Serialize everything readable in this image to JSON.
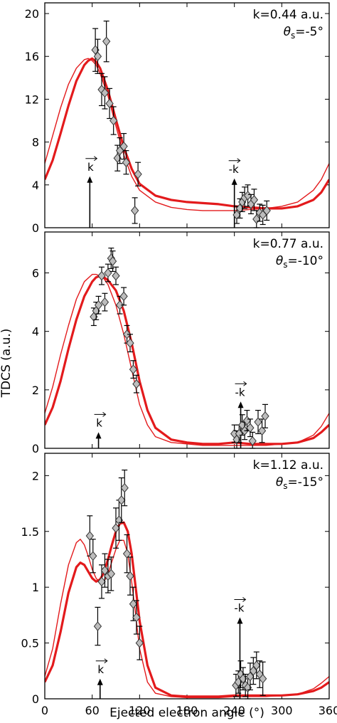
{
  "figure": {
    "ylabel": "TDCS (a.u.)",
    "xlabel": "Ejected electron angle (°)"
  },
  "chart_data": [
    {
      "type": "line",
      "annotation_k": "k=0.44 a.u.",
      "annotation_theta_sym": "θ",
      "annotation_theta_sub": "s",
      "annotation_theta_val": "=-5°",
      "ylim": [
        0,
        21
      ],
      "yticks": [
        0,
        4,
        8,
        12,
        16,
        20
      ],
      "xlim": [
        0,
        360
      ],
      "series": [
        {
          "style": "thick",
          "color": "#e31a1c",
          "x": [
            0,
            10,
            20,
            30,
            40,
            50,
            55,
            60,
            65,
            70,
            80,
            90,
            100,
            110,
            120,
            140,
            160,
            180,
            200,
            220,
            240,
            260,
            280,
            300,
            320,
            340,
            350,
            360
          ],
          "y": [
            4.5,
            6.3,
            8.8,
            11.4,
            13.7,
            15.2,
            15.6,
            15.8,
            15.5,
            14.9,
            12.8,
            10.1,
            7.5,
            5.5,
            4.1,
            3.0,
            2.6,
            2.4,
            2.3,
            2.2,
            2.0,
            1.9,
            1.8,
            1.8,
            2.0,
            2.6,
            3.3,
            4.5
          ]
        },
        {
          "style": "thin",
          "color": "#e31a1c",
          "x": [
            0,
            10,
            20,
            30,
            40,
            50,
            55,
            60,
            65,
            70,
            80,
            90,
            100,
            110,
            120,
            140,
            160,
            180,
            200,
            220,
            240,
            260,
            280,
            300,
            320,
            340,
            350,
            360
          ],
          "y": [
            6.0,
            8.6,
            11.2,
            13.4,
            14.9,
            15.7,
            15.8,
            15.6,
            15.2,
            14.4,
            12.3,
            9.5,
            6.8,
            4.8,
            3.5,
            2.4,
            1.9,
            1.7,
            1.6,
            1.6,
            1.6,
            1.7,
            1.8,
            2.0,
            2.4,
            3.5,
            4.5,
            6.0
          ]
        }
      ],
      "points": [
        {
          "x": 64,
          "y": 16.6,
          "err": 2.0
        },
        {
          "x": 67,
          "y": 16.0,
          "err": 1.6
        },
        {
          "x": 72,
          "y": 12.9,
          "err": 1.5
        },
        {
          "x": 76,
          "y": 12.6,
          "err": 1.5
        },
        {
          "x": 78,
          "y": 17.4,
          "err": 1.9
        },
        {
          "x": 82,
          "y": 11.6,
          "err": 1.4
        },
        {
          "x": 87,
          "y": 10.0,
          "err": 1.3
        },
        {
          "x": 92,
          "y": 6.5,
          "err": 1.2
        },
        {
          "x": 95,
          "y": 7.2,
          "err": 1.2
        },
        {
          "x": 100,
          "y": 7.6,
          "err": 1.2
        },
        {
          "x": 103,
          "y": 6.1,
          "err": 1.1
        },
        {
          "x": 114,
          "y": 1.6,
          "err": 1.2
        },
        {
          "x": 118,
          "y": 5.0,
          "err": 1.1
        },
        {
          "x": 243,
          "y": 1.2,
          "err": 0.8
        },
        {
          "x": 247,
          "y": 1.8,
          "err": 0.9
        },
        {
          "x": 250,
          "y": 2.4,
          "err": 0.9
        },
        {
          "x": 253,
          "y": 2.8,
          "err": 1.0
        },
        {
          "x": 257,
          "y": 3.0,
          "err": 1.0
        },
        {
          "x": 261,
          "y": 2.2,
          "err": 0.9
        },
        {
          "x": 265,
          "y": 2.6,
          "err": 1.0
        },
        {
          "x": 268,
          "y": 0.8,
          "err": 0.8
        },
        {
          "x": 272,
          "y": 1.4,
          "err": 0.8
        },
        {
          "x": 276,
          "y": 1.2,
          "err": 0.9
        },
        {
          "x": 281,
          "y": 1.6,
          "err": 0.9
        }
      ],
      "arrows": [
        {
          "x": 57,
          "y0": 0,
          "y1": 4.8,
          "label": "k"
        },
        {
          "x": 240,
          "y0": 0,
          "y1": 4.6,
          "label": "-k"
        }
      ]
    },
    {
      "type": "line",
      "annotation_k": "k=0.77 a.u.",
      "annotation_theta_sym": "θ",
      "annotation_theta_sub": "s",
      "annotation_theta_val": "=-10°",
      "ylim": [
        0,
        7.4
      ],
      "yticks": [
        0,
        2,
        4,
        6
      ],
      "xlim": [
        0,
        360
      ],
      "series": [
        {
          "style": "thick",
          "color": "#e31a1c",
          "x": [
            0,
            10,
            20,
            30,
            40,
            50,
            60,
            65,
            70,
            75,
            80,
            90,
            100,
            110,
            120,
            130,
            140,
            160,
            180,
            200,
            220,
            240,
            260,
            280,
            300,
            320,
            340,
            350,
            360
          ],
          "y": [
            0.8,
            1.4,
            2.3,
            3.4,
            4.4,
            5.2,
            5.7,
            5.85,
            5.9,
            5.85,
            5.75,
            5.4,
            4.7,
            3.6,
            2.3,
            1.3,
            0.7,
            0.3,
            0.2,
            0.15,
            0.15,
            0.2,
            0.15,
            0.15,
            0.15,
            0.2,
            0.35,
            0.55,
            0.8
          ]
        },
        {
          "style": "thin",
          "color": "#e31a1c",
          "x": [
            0,
            10,
            20,
            30,
            40,
            50,
            60,
            65,
            70,
            75,
            80,
            90,
            100,
            110,
            120,
            130,
            140,
            160,
            180,
            200,
            220,
            240,
            260,
            280,
            300,
            320,
            340,
            350,
            360
          ],
          "y": [
            1.2,
            2.1,
            3.2,
            4.2,
            5.1,
            5.7,
            5.95,
            5.95,
            5.9,
            5.8,
            5.6,
            4.9,
            3.9,
            2.7,
            1.5,
            0.8,
            0.4,
            0.2,
            0.15,
            0.1,
            0.1,
            0.1,
            0.1,
            0.1,
            0.15,
            0.2,
            0.45,
            0.75,
            1.2
          ]
        }
      ],
      "points": [
        {
          "x": 62,
          "y": 4.5,
          "err": 0.3
        },
        {
          "x": 65,
          "y": 4.7,
          "err": 0.3
        },
        {
          "x": 68,
          "y": 4.9,
          "err": 0.3
        },
        {
          "x": 72,
          "y": 5.9,
          "err": 0.3
        },
        {
          "x": 76,
          "y": 5.0,
          "err": 0.3
        },
        {
          "x": 80,
          "y": 6.0,
          "err": 0.3
        },
        {
          "x": 84,
          "y": 6.5,
          "err": 0.35
        },
        {
          "x": 86,
          "y": 6.4,
          "err": 0.35
        },
        {
          "x": 90,
          "y": 5.9,
          "err": 0.3
        },
        {
          "x": 95,
          "y": 4.9,
          "err": 0.3
        },
        {
          "x": 100,
          "y": 5.2,
          "err": 0.3
        },
        {
          "x": 104,
          "y": 3.9,
          "err": 0.3
        },
        {
          "x": 108,
          "y": 3.6,
          "err": 0.3
        },
        {
          "x": 112,
          "y": 2.7,
          "err": 0.3
        },
        {
          "x": 116,
          "y": 2.2,
          "err": 0.3
        },
        {
          "x": 240,
          "y": 0.5,
          "err": 0.3
        },
        {
          "x": 243,
          "y": 0.3,
          "err": 0.3
        },
        {
          "x": 246,
          "y": 0.5,
          "err": 0.3
        },
        {
          "x": 250,
          "y": 0.8,
          "err": 0.35
        },
        {
          "x": 253,
          "y": 0.6,
          "err": 0.3
        },
        {
          "x": 256,
          "y": 0.95,
          "err": 0.35
        },
        {
          "x": 260,
          "y": 0.7,
          "err": 0.3
        },
        {
          "x": 263,
          "y": 0.25,
          "err": 0.3
        },
        {
          "x": 270,
          "y": 0.9,
          "err": 0.4
        },
        {
          "x": 275,
          "y": 0.6,
          "err": 0.4
        },
        {
          "x": 279,
          "y": 1.1,
          "err": 0.4
        }
      ],
      "arrows": [
        {
          "x": 68,
          "y0": 0,
          "y1": 0.55,
          "label": "k"
        },
        {
          "x": 248,
          "y0": 0,
          "y1": 1.6,
          "label": "-k"
        }
      ]
    },
    {
      "type": "line",
      "annotation_k": "k=1.12 a.u.",
      "annotation_theta_sym": "θ",
      "annotation_theta_sub": "s",
      "annotation_theta_val": "=-15°",
      "ylim": [
        0,
        2.2
      ],
      "yticks": [
        0,
        0.5,
        1,
        1.5,
        2
      ],
      "xlim": [
        0,
        360
      ],
      "series": [
        {
          "style": "thick",
          "color": "#e31a1c",
          "x": [
            0,
            10,
            20,
            30,
            40,
            45,
            50,
            55,
            60,
            65,
            70,
            75,
            80,
            85,
            90,
            95,
            100,
            105,
            110,
            115,
            120,
            130,
            140,
            160,
            180,
            200,
            220,
            240,
            260,
            280,
            300,
            320,
            340,
            350,
            360
          ],
          "y": [
            0.15,
            0.3,
            0.6,
            0.95,
            1.18,
            1.22,
            1.2,
            1.14,
            1.08,
            1.05,
            1.07,
            1.13,
            1.25,
            1.38,
            1.5,
            1.57,
            1.58,
            1.5,
            1.3,
            1.0,
            0.7,
            0.3,
            0.1,
            0.03,
            0.02,
            0.02,
            0.02,
            0.03,
            0.03,
            0.03,
            0.03,
            0.04,
            0.07,
            0.1,
            0.15
          ]
        },
        {
          "style": "thin",
          "color": "#e31a1c",
          "x": [
            0,
            10,
            20,
            30,
            40,
            45,
            50,
            55,
            60,
            65,
            70,
            75,
            80,
            85,
            90,
            95,
            100,
            105,
            110,
            115,
            120,
            130,
            140,
            160,
            180,
            200,
            220,
            240,
            260,
            280,
            300,
            320,
            340,
            350,
            360
          ],
          "y": [
            0.2,
            0.45,
            0.85,
            1.2,
            1.4,
            1.43,
            1.38,
            1.28,
            1.16,
            1.08,
            1.04,
            1.05,
            1.12,
            1.23,
            1.34,
            1.42,
            1.42,
            1.3,
            1.05,
            0.75,
            0.45,
            0.15,
            0.05,
            0.02,
            0.01,
            0.01,
            0.01,
            0.02,
            0.02,
            0.02,
            0.03,
            0.04,
            0.09,
            0.14,
            0.2
          ]
        }
      ],
      "points": [
        {
          "x": 57,
          "y": 1.46,
          "err": 0.18
        },
        {
          "x": 61,
          "y": 1.28,
          "err": 0.15
        },
        {
          "x": 67,
          "y": 0.65,
          "err": 0.17
        },
        {
          "x": 72,
          "y": 1.05,
          "err": 0.15
        },
        {
          "x": 76,
          "y": 1.15,
          "err": 0.15
        },
        {
          "x": 80,
          "y": 1.1,
          "err": 0.15
        },
        {
          "x": 84,
          "y": 1.12,
          "err": 0.15
        },
        {
          "x": 90,
          "y": 1.53,
          "err": 0.18
        },
        {
          "x": 94,
          "y": 1.6,
          "err": 0.18
        },
        {
          "x": 97,
          "y": 1.78,
          "err": 0.2
        },
        {
          "x": 101,
          "y": 1.89,
          "err": 0.16
        },
        {
          "x": 104,
          "y": 1.3,
          "err": 0.17
        },
        {
          "x": 108,
          "y": 1.1,
          "err": 0.17
        },
        {
          "x": 112,
          "y": 0.85,
          "err": 0.15
        },
        {
          "x": 116,
          "y": 0.73,
          "err": 0.15
        },
        {
          "x": 120,
          "y": 0.5,
          "err": 0.15
        },
        {
          "x": 242,
          "y": 0.12,
          "err": 0.1
        },
        {
          "x": 245,
          "y": 0.15,
          "err": 0.1
        },
        {
          "x": 248,
          "y": 0.22,
          "err": 0.12
        },
        {
          "x": 251,
          "y": 0.18,
          "err": 0.1
        },
        {
          "x": 254,
          "y": 0.12,
          "err": 0.1
        },
        {
          "x": 257,
          "y": 0.1,
          "err": 0.1
        },
        {
          "x": 260,
          "y": 0.2,
          "err": 0.12
        },
        {
          "x": 264,
          "y": 0.25,
          "err": 0.12
        },
        {
          "x": 268,
          "y": 0.3,
          "err": 0.12
        },
        {
          "x": 272,
          "y": 0.22,
          "err": 0.12
        },
        {
          "x": 276,
          "y": 0.18,
          "err": 0.15
        }
      ],
      "arrows": [
        {
          "x": 70,
          "y0": 0,
          "y1": 0.18,
          "label": "k"
        },
        {
          "x": 247,
          "y0": 0,
          "y1": 0.73,
          "label": "-k"
        }
      ]
    }
  ],
  "xticks": [
    0,
    60,
    120,
    180,
    240,
    300,
    360
  ]
}
